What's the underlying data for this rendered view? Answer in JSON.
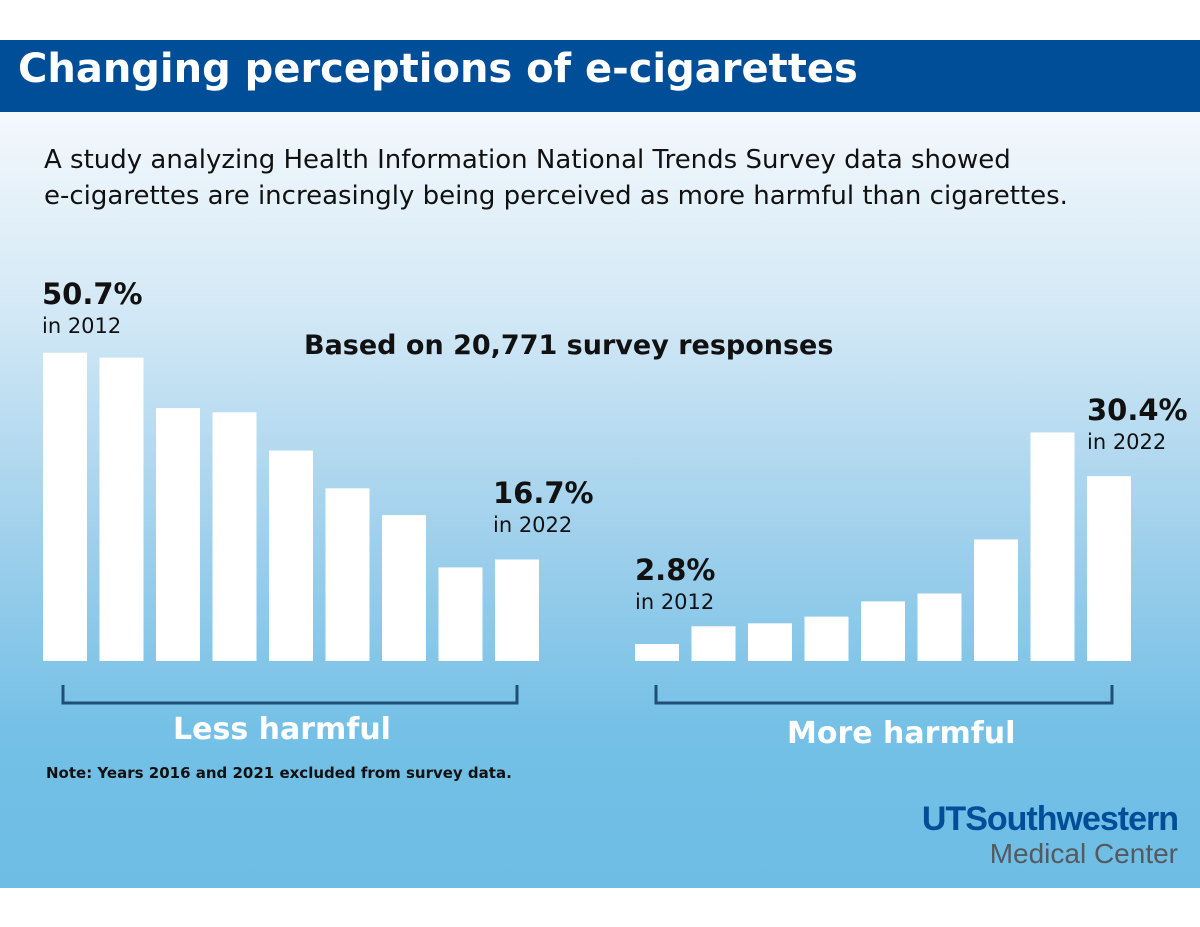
{
  "header": {
    "title": "Changing perceptions of e-cigarettes"
  },
  "intro": {
    "line1": "A study analyzing Health Information National Trends Survey data showed",
    "line2": "e-cigarettes are increasingly being perceived as more harmful than cigarettes."
  },
  "sample_note": "Based on 20,771 survey responses",
  "footnote": "Note: Years 2016 and 2021 excluded from survey data.",
  "logo": {
    "line1": "UTSouthwestern",
    "line2": "Medical Center"
  },
  "colors": {
    "header": "#004e98",
    "bar": "#ffffff",
    "bracket": "#1f4e79",
    "logo_primary": "#004e98",
    "logo_secondary": "#555a5f"
  },
  "chart_data": [
    {
      "type": "bar",
      "group_label": "Less harmful",
      "values": [
        50.7,
        49.9,
        41.6,
        40.9,
        34.6,
        28.4,
        24.0,
        15.4,
        16.7
      ],
      "first_callout": {
        "value": "50.7%",
        "year": "in 2012"
      },
      "last_callout": {
        "value": "16.7%",
        "year": "in 2022"
      },
      "unit": "%"
    },
    {
      "type": "bar",
      "group_label": "More harmful",
      "values": [
        2.8,
        5.7,
        6.2,
        7.3,
        9.8,
        11.1,
        20.0,
        37.6,
        30.4
      ],
      "first_callout": {
        "value": "2.8%",
        "year": "in 2012"
      },
      "last_callout": {
        "value": "30.4%",
        "year": "in 2022"
      },
      "unit": "%"
    }
  ]
}
